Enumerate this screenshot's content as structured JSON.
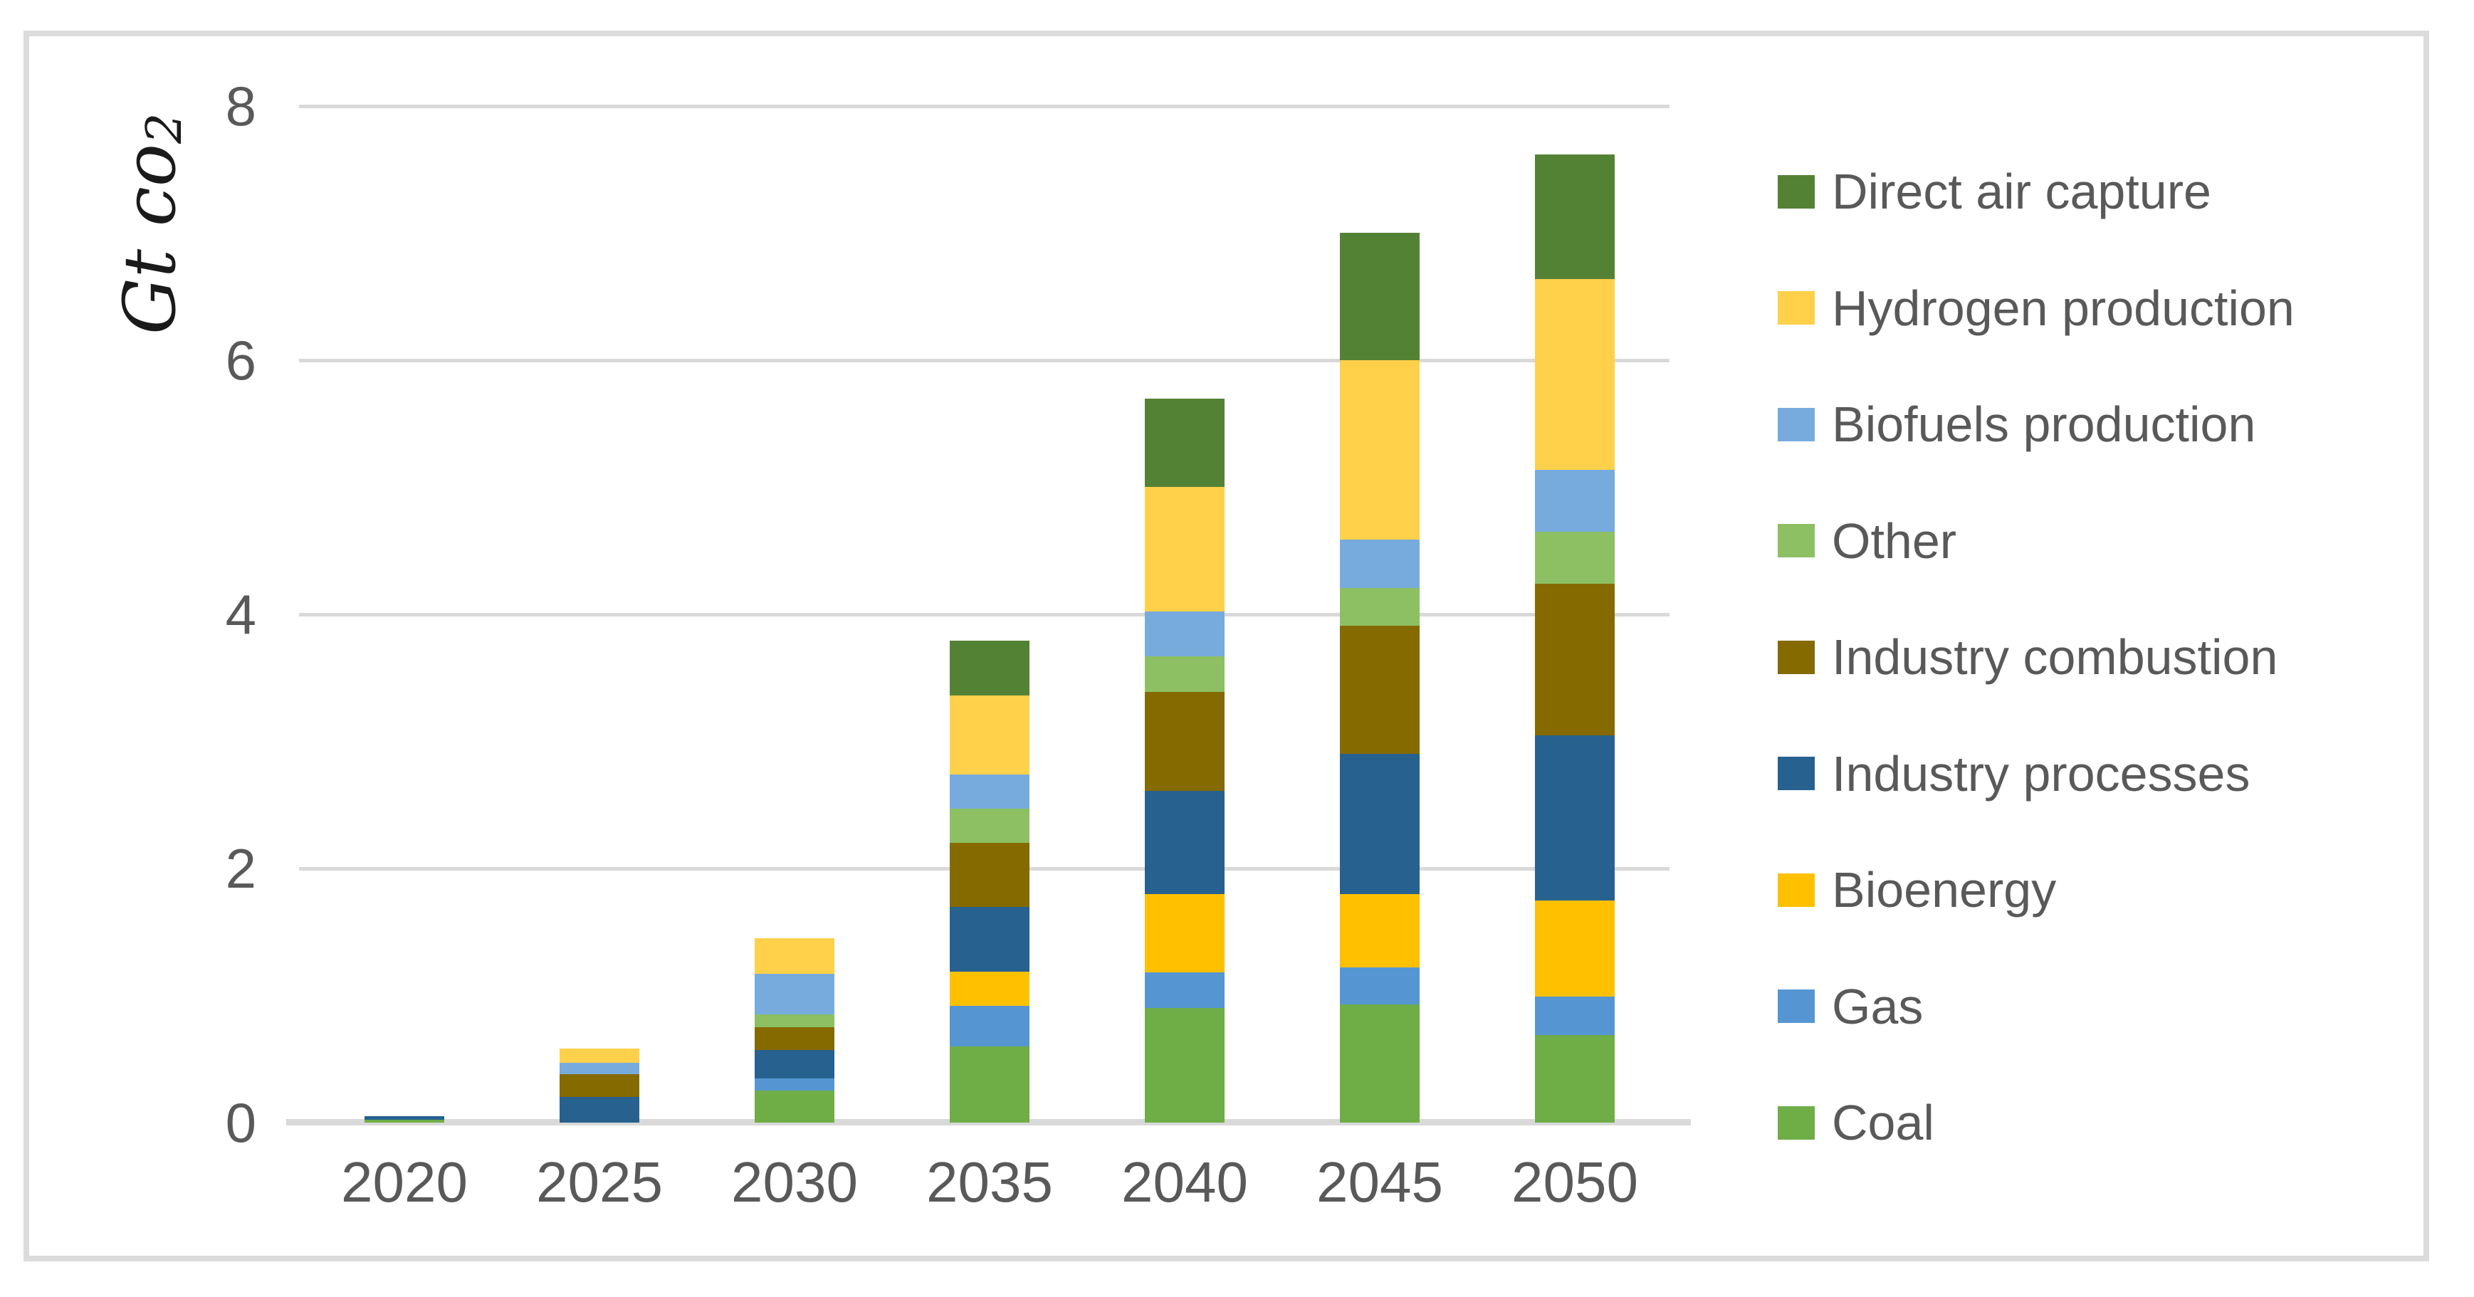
{
  "figure": {
    "y_axis_label_main": "Gt co",
    "y_axis_label_sub": "2"
  },
  "chart_data": {
    "type": "bar",
    "stacked": true,
    "title": "",
    "ylabel": "Gt co2",
    "xlabel": "",
    "ylim": [
      0,
      8
    ],
    "y_tick_values": [
      0,
      2,
      4,
      6,
      8
    ],
    "gridlines": "horizontal",
    "legend_position": "right",
    "categories": [
      "2020",
      "2025",
      "2030",
      "2035",
      "2040",
      "2045",
      "2050"
    ],
    "series": [
      {
        "name": "Coal",
        "color": "#6FAD47",
        "values": [
          0.02,
          0.0,
          0.25,
          0.6,
          0.9,
          0.93,
          0.69
        ]
      },
      {
        "name": "Gas",
        "color": "#5596D2",
        "values": [
          0.0,
          0.0,
          0.1,
          0.32,
          0.28,
          0.29,
          0.3
        ]
      },
      {
        "name": "Bioenergy",
        "color": "#FFC000",
        "values": [
          0.0,
          0.0,
          0.0,
          0.27,
          0.62,
          0.58,
          0.76
        ]
      },
      {
        "name": "Industry processes",
        "color": "#27618F",
        "values": [
          0.03,
          0.2,
          0.22,
          0.51,
          0.81,
          1.1,
          1.3
        ]
      },
      {
        "name": "Industry combustion",
        "color": "#856A00",
        "values": [
          0.0,
          0.18,
          0.18,
          0.5,
          0.78,
          1.01,
          1.19
        ]
      },
      {
        "name": "Other",
        "color": "#8CC063",
        "values": [
          0.0,
          0.0,
          0.1,
          0.27,
          0.28,
          0.3,
          0.41
        ]
      },
      {
        "name": "Biofuels production",
        "color": "#77ABDD",
        "values": [
          0.0,
          0.09,
          0.32,
          0.27,
          0.35,
          0.38,
          0.49
        ]
      },
      {
        "name": "Hydrogen production",
        "color": "#FFD04A",
        "values": [
          0.0,
          0.11,
          0.28,
          0.62,
          0.98,
          1.41,
          1.5
        ]
      },
      {
        "name": "Direct air capture",
        "color": "#548235",
        "values": [
          0.0,
          0.0,
          0.0,
          0.43,
          0.7,
          1.0,
          0.98
        ]
      }
    ],
    "totals": [
      0.05,
      0.58,
      1.45,
      3.79,
      5.7,
      7.0,
      7.62
    ],
    "legend_order_top_to_bottom": [
      "Direct air capture",
      "Hydrogen production",
      "Biofuels production",
      "Other",
      "Industry combustion",
      "Industry processes",
      "Bioenergy",
      "Gas",
      "Coal"
    ],
    "style": {
      "gridline_color": "#D9D9D9",
      "axis_line_color": "#D9D9D9",
      "tick_label_color": "#595959",
      "legend_text_color": "#595959",
      "frame_border_color": "#DCDCDC",
      "background_color": "#FFFFFF"
    }
  }
}
